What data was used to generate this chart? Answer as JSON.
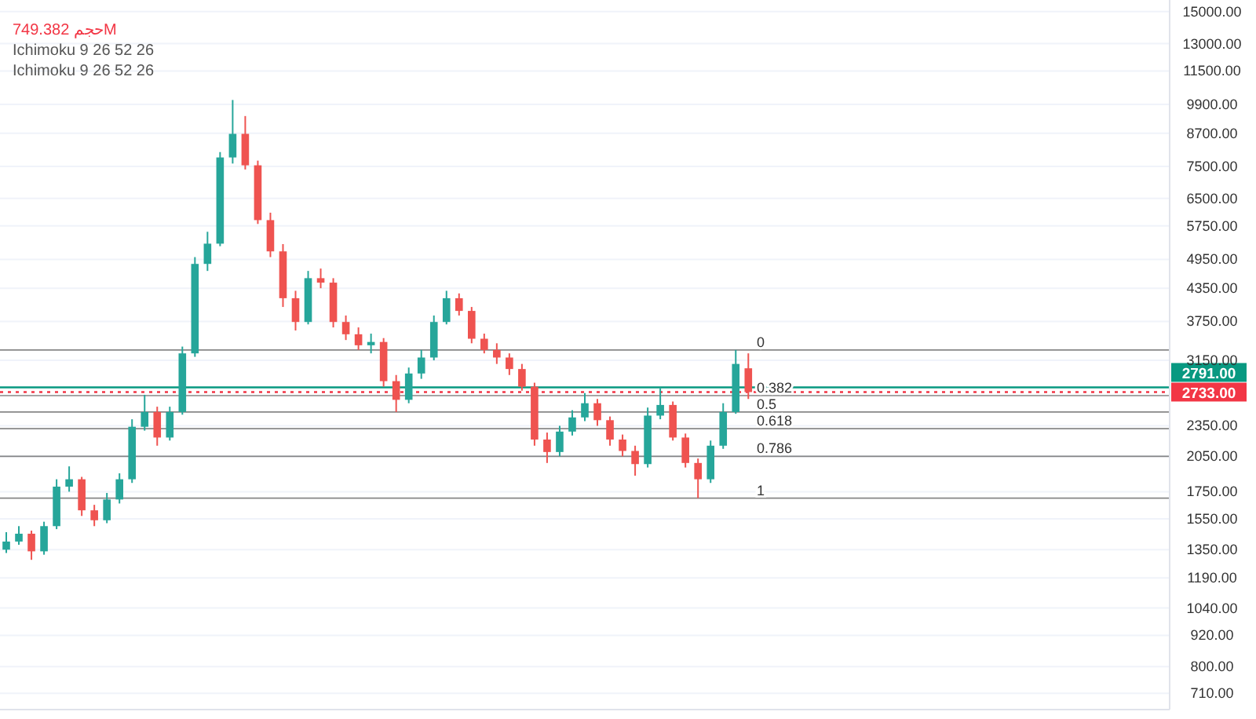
{
  "chart_data": {
    "type": "candlestick",
    "categories": [
      null,
      null,
      null,
      null,
      null,
      null,
      null,
      null,
      null,
      null,
      null,
      null,
      null,
      null,
      null,
      null,
      null,
      null,
      null,
      null,
      null,
      null,
      null,
      null,
      null,
      null,
      null,
      null,
      null,
      null,
      null,
      null,
      null,
      null,
      null,
      null,
      null,
      null,
      null,
      null,
      null,
      null,
      null,
      null,
      null,
      null,
      null,
      null,
      null,
      null,
      null,
      null,
      null,
      null,
      null,
      null,
      null,
      null,
      null,
      null,
      null,
      null,
      null,
      null,
      null,
      null,
      null,
      null,
      null,
      null,
      null,
      null,
      null,
      null,
      null,
      null,
      null,
      null,
      null,
      null,
      null,
      null,
      null,
      null,
      null,
      null,
      null,
      null,
      null,
      null,
      null,
      null,
      null
    ],
    "ohlc": [
      [
        1350,
        1460,
        1330,
        1400
      ],
      [
        1400,
        1500,
        1380,
        1450
      ],
      [
        1450,
        1470,
        1290,
        1340
      ],
      [
        1340,
        1530,
        1320,
        1500
      ],
      [
        1500,
        1850,
        1480,
        1790
      ],
      [
        1790,
        1960,
        1750,
        1850
      ],
      [
        1850,
        1870,
        1570,
        1610
      ],
      [
        1610,
        1650,
        1500,
        1540
      ],
      [
        1540,
        1740,
        1520,
        1690
      ],
      [
        1690,
        1900,
        1660,
        1850
      ],
      [
        1850,
        2420,
        1820,
        2340
      ],
      [
        2340,
        2700,
        2300,
        2500
      ],
      [
        2500,
        2560,
        2150,
        2230
      ],
      [
        2230,
        2560,
        2200,
        2500
      ],
      [
        2500,
        3350,
        2470,
        3250
      ],
      [
        3250,
        5000,
        3200,
        4850
      ],
      [
        4850,
        5600,
        4700,
        5310
      ],
      [
        5310,
        8000,
        5250,
        7810
      ],
      [
        7810,
        10100,
        7600,
        8680
      ],
      [
        8680,
        9400,
        7400,
        7540
      ],
      [
        7540,
        7700,
        5800,
        5900
      ],
      [
        5900,
        6100,
        5000,
        5130
      ],
      [
        5130,
        5300,
        4000,
        4160
      ],
      [
        4160,
        4300,
        3600,
        3740
      ],
      [
        3740,
        4700,
        3700,
        4550
      ],
      [
        4550,
        4750,
        4350,
        4460
      ],
      [
        4460,
        4550,
        3650,
        3740
      ],
      [
        3740,
        3850,
        3450,
        3540
      ],
      [
        3540,
        3650,
        3300,
        3370
      ],
      [
        3370,
        3550,
        3250,
        3420
      ],
      [
        3420,
        3480,
        2800,
        2870
      ],
      [
        2870,
        2950,
        2500,
        2640
      ],
      [
        2640,
        3050,
        2600,
        2970
      ],
      [
        2970,
        3300,
        2900,
        3190
      ],
      [
        3190,
        3850,
        3150,
        3740
      ],
      [
        3740,
        4300,
        3700,
        4160
      ],
      [
        4160,
        4250,
        3850,
        3930
      ],
      [
        3930,
        4000,
        3400,
        3470
      ],
      [
        3470,
        3550,
        3250,
        3300
      ],
      [
        3300,
        3400,
        3100,
        3190
      ],
      [
        3190,
        3250,
        2950,
        3030
      ],
      [
        3030,
        3100,
        2750,
        2800
      ],
      [
        2800,
        2850,
        2150,
        2210
      ],
      [
        2210,
        2280,
        1990,
        2090
      ],
      [
        2090,
        2350,
        2050,
        2290
      ],
      [
        2290,
        2520,
        2250,
        2440
      ],
      [
        2440,
        2720,
        2400,
        2600
      ],
      [
        2600,
        2650,
        2350,
        2410
      ],
      [
        2410,
        2450,
        2150,
        2210
      ],
      [
        2210,
        2260,
        2050,
        2100
      ],
      [
        2100,
        2150,
        1880,
        1980
      ],
      [
        1980,
        2550,
        1950,
        2460
      ],
      [
        2460,
        2780,
        2420,
        2580
      ],
      [
        2580,
        2620,
        2200,
        2230
      ],
      [
        2230,
        2270,
        1950,
        1990
      ],
      [
        1990,
        2030,
        1700,
        1850
      ],
      [
        1850,
        2200,
        1820,
        2150
      ],
      [
        2150,
        2600,
        2120,
        2500
      ],
      [
        2500,
        3300,
        2480,
        3100
      ],
      [
        3040,
        3250,
        2650,
        2733
      ],
      null,
      null,
      null,
      null,
      null,
      null,
      null,
      null,
      null,
      null,
      null,
      null,
      null,
      null,
      null,
      null,
      null,
      null,
      null,
      null,
      null,
      null,
      null,
      null,
      null,
      null,
      null,
      null,
      null,
      null,
      null,
      null,
      null
    ],
    "colors": [
      "#26a69a",
      "#26a69a",
      "#ef5350",
      "#26a69a",
      "#26a69a",
      "#26a69a",
      "#ef5350",
      "#ef5350",
      "#26a69a",
      "#26a69a",
      "#26a69a",
      "#26a69a",
      "#ef5350",
      "#26a69a",
      "#26a69a",
      "#26a69a",
      "#26a69a",
      "#26a69a",
      "#26a69a",
      "#ef5350",
      "#ef5350",
      "#ef5350",
      "#ef5350",
      "#ef5350",
      "#26a69a",
      "#ef5350",
      "#ef5350",
      "#ef5350",
      "#ef5350",
      "#26a69a",
      "#ef5350",
      "#ef5350",
      "#26a69a",
      "#26a69a",
      "#26a69a",
      "#26a69a",
      "#ef5350",
      "#ef5350",
      "#ef5350",
      "#ef5350",
      "#ef5350",
      "#ef5350",
      "#ef5350",
      "#ef5350",
      "#26a69a",
      "#26a69a",
      "#26a69a",
      "#ef5350",
      "#ef5350",
      "#ef5350",
      "#ef5350",
      "#26a69a",
      "#26a69a",
      "#ef5350",
      "#ef5350",
      "#ef5350",
      "#26a69a",
      "#26a69a",
      "#26a69a",
      "#ef5350",
      null,
      null,
      null,
      null,
      null,
      null,
      null,
      null,
      null,
      null,
      null,
      null,
      null,
      null,
      null,
      null,
      null,
      null,
      null,
      null,
      null,
      null,
      null,
      null,
      null,
      null,
      null,
      null,
      null,
      null,
      null,
      null,
      null
    ],
    "log": true,
    "ylim": [
      660,
      15800
    ],
    "yticks": [
      {
        "value": 710,
        "label": "710.00"
      },
      {
        "value": 800,
        "label": "800.00"
      },
      {
        "value": 920,
        "label": "920.00"
      },
      {
        "value": 1040,
        "label": "1040.00"
      },
      {
        "value": 1190,
        "label": "1190.00"
      },
      {
        "value": 1350,
        "label": "1350.00"
      },
      {
        "value": 1550,
        "label": "1550.00"
      },
      {
        "value": 1750,
        "label": "1750.00"
      },
      {
        "value": 2050,
        "label": "2050.00"
      },
      {
        "value": 2350,
        "label": "2350.00"
      },
      {
        "value": 3150,
        "label": "3150.00"
      },
      {
        "value": 3750,
        "label": "3750.00"
      },
      {
        "value": 4350,
        "label": "4350.00"
      },
      {
        "value": 4950,
        "label": "4950.00"
      },
      {
        "value": 5750,
        "label": "5750.00"
      },
      {
        "value": 6500,
        "label": "6500.00"
      },
      {
        "value": 7500,
        "label": "7500.00"
      },
      {
        "value": 8700,
        "label": "8700.00"
      },
      {
        "value": 9900,
        "label": "9900.00"
      },
      {
        "value": 11500,
        "label": "11500.00"
      },
      {
        "value": 13000,
        "label": "13000.00"
      },
      {
        "value": 15000,
        "label": "15000.00"
      }
    ],
    "grid": "y",
    "ref_lines": [
      {
        "axis": "y",
        "value": 3300
      },
      {
        "axis": "y",
        "value": 2690
      },
      {
        "axis": "y",
        "value": 2500
      },
      {
        "axis": "y",
        "value": 2320
      },
      {
        "axis": "y",
        "value": 2050
      },
      {
        "axis": "y",
        "value": 1700
      },
      {
        "axis": "y",
        "value": 2791,
        "label": "2791.00",
        "color": "#089981",
        "line_style": "solid"
      },
      {
        "axis": "y",
        "value": 2733,
        "label": "2733.00",
        "color": "#f23645",
        "line_style": "dotted"
      }
    ],
    "annotations": [
      "حجم 749.382M",
      "Ichimoku 9 26 52 26",
      "Ichimoku 9 26 52 26",
      {
        "text": "0",
        "y": 3300
      },
      {
        "text": "0.382",
        "y": 2690
      },
      {
        "text": "0.5",
        "y": 2500
      },
      {
        "text": "0.618",
        "y": 2320
      },
      {
        "text": "0.786",
        "y": 2050
      },
      {
        "text": "1",
        "y": 1700
      }
    ]
  }
}
